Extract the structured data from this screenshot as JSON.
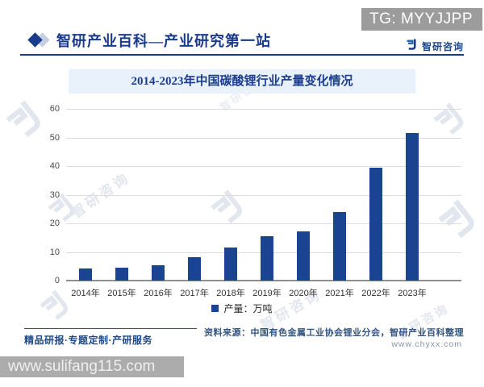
{
  "header": {
    "tg_badge": "TG: MYYJJPP",
    "brand_title": "智研产业百科—产业研究第一站",
    "logo_text": "智研咨询"
  },
  "chart_data": {
    "type": "bar",
    "title": "2014-2023年中国碳酸锂行业产量变化情况",
    "categories": [
      "2014年",
      "2015年",
      "2016年",
      "2017年",
      "2018年",
      "2019年",
      "2020年",
      "2021年",
      "2022年",
      "2023年"
    ],
    "values": [
      4.1,
      4.4,
      5.3,
      8.1,
      11.7,
      15.5,
      17.2,
      24.0,
      39.5,
      51.5
    ],
    "legend": "产量：万吨",
    "xlabel": "",
    "ylabel": "",
    "ylim": [
      0,
      60
    ],
    "yticks": [
      0,
      10,
      20,
      30,
      40,
      50,
      60
    ],
    "grid": true,
    "legend_position": "bottom",
    "bar_color": "#1a4391"
  },
  "footer": {
    "tagline": "精品研报·专题定制·产研服务",
    "source": "资料来源：中国有色金属工业协会锂业分会，智研产业百科整理",
    "website": "www.chyxx.com"
  },
  "banner": {
    "url": "www.sulifang115.com"
  },
  "watermark": {
    "text": "智研咨询"
  },
  "colors": {
    "accent": "#1b3c8c",
    "bar": "#1a4391",
    "title_band_bg": "#e9f1fa",
    "badge_bg": "#9c9c9c",
    "banner_bg": "#acacac"
  }
}
